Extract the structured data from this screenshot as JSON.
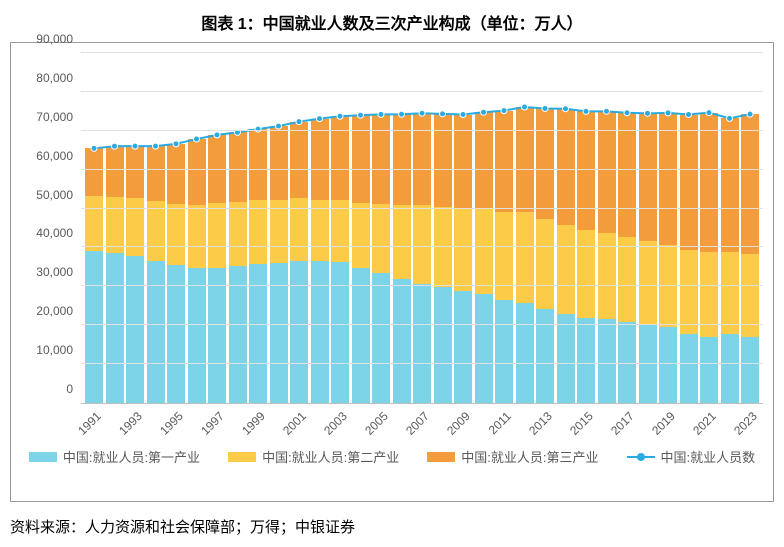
{
  "title": "图表 1：中国就业人数及三次产业构成（单位：万人）",
  "source": "资料来源：人力资源和社会保障部；万得；中银证券",
  "chart": {
    "type": "stacked-bar-with-line",
    "ylim": [
      0,
      90000
    ],
    "ytick_step": 10000,
    "yticks": [
      "0",
      "10,000",
      "20,000",
      "30,000",
      "40,000",
      "50,000",
      "60,000",
      "70,000",
      "80,000",
      "90,000"
    ],
    "categories": [
      "1991",
      "1992",
      "1993",
      "1994",
      "1995",
      "1996",
      "1997",
      "1998",
      "1999",
      "2000",
      "2001",
      "2002",
      "2003",
      "2004",
      "2005",
      "2006",
      "2007",
      "2008",
      "2009",
      "2010",
      "2011",
      "2012",
      "2013",
      "2014",
      "2015",
      "2016",
      "2017",
      "2018",
      "2019",
      "2020",
      "2021",
      "2022",
      "2023"
    ],
    "xtick_show": [
      "1991",
      "1993",
      "1995",
      "1997",
      "1999",
      "2001",
      "2003",
      "2005",
      "2007",
      "2009",
      "2011",
      "2013",
      "2015",
      "2017",
      "2019",
      "2021",
      "2023"
    ],
    "series": {
      "primary": {
        "label": "中国:就业人员:第一产业",
        "color": "#7dd3e8",
        "values": [
          39098,
          38699,
          37680,
          36628,
          35530,
          34820,
          34840,
          35177,
          35768,
          36043,
          36399,
          36640,
          36204,
          34830,
          33442,
          31941,
          30731,
          29923,
          28890,
          27931,
          26594,
          25773,
          24171,
          22790,
          21919,
          21496,
          20944,
          20258,
          19445,
          17715,
          17072,
          17663,
          16882
        ]
      },
      "secondary": {
        "label": "中国:就业人员:第二产业",
        "color": "#fccc48",
        "values": [
          14015,
          14355,
          14965,
          15312,
          15655,
          16203,
          16547,
          16600,
          16421,
          16219,
          16234,
          15682,
          15927,
          16709,
          17766,
          18894,
          20186,
          20553,
          21080,
          21842,
          22544,
          23241,
          23170,
          23099,
          22693,
          22350,
          21824,
          21390,
          21305,
          21543,
          21712,
          21222,
          21520
        ]
      },
      "tertiary": {
        "label": "中国:就业人员:第三产业",
        "color": "#f39c3c",
        "values": [
          12378,
          12979,
          13411,
          14121,
          15456,
          16851,
          17560,
          17812,
          18244,
          18935,
          19706,
          20812,
          21605,
          22454,
          23011,
          23421,
          23601,
          23879,
          24205,
          24977,
          26043,
          27105,
          28402,
          29764,
          30364,
          31157,
          31872,
          32839,
          33841,
          34915,
          35868,
          34310,
          35868
        ]
      }
    },
    "line": {
      "label": "中国:就业人员数",
      "color": "#29abe2",
      "marker_color": "#29abe2",
      "marker_size": 6,
      "line_width": 2,
      "values": [
        65491,
        66033,
        66056,
        66061,
        66641,
        67874,
        68947,
        69589,
        70433,
        71197,
        72339,
        73134,
        73736,
        73993,
        74219,
        74256,
        74518,
        74355,
        74175,
        74750,
        75181,
        76119,
        75743,
        75653,
        74976,
        75003,
        74640,
        74487,
        74591,
        74173,
        74652,
        73195,
        74270
      ]
    },
    "grid_color": "#e0e0e0",
    "axis_font_size": 12,
    "legend_font_size": 13,
    "background_color": "#ffffff"
  }
}
